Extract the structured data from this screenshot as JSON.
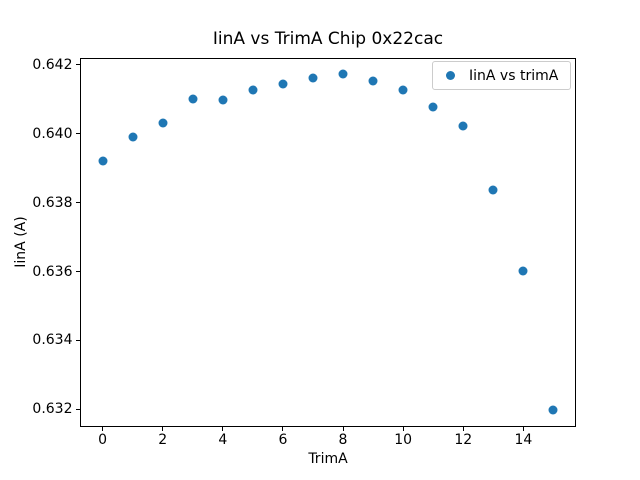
{
  "figure": {
    "background": "#ffffff",
    "spine_color": "#000000",
    "legend_border_color": "#cccccc"
  },
  "chart_data": {
    "type": "scatter",
    "title": "IinA vs TrimA Chip 0x22cac",
    "xlabel": "TrimA",
    "ylabel": "IinA (A)",
    "legend": [
      "IinA vs trimA"
    ],
    "legend_position": "upper right",
    "marker_color": "#1f77b4",
    "grid": false,
    "x": [
      0,
      1,
      2,
      3,
      4,
      5,
      6,
      7,
      8,
      9,
      10,
      11,
      12,
      13,
      14,
      15
    ],
    "y": [
      0.63921,
      0.6399,
      0.64032,
      0.64101,
      0.64098,
      0.64127,
      0.64144,
      0.64161,
      0.64173,
      0.64154,
      0.64127,
      0.64077,
      0.64023,
      0.63838,
      0.63603,
      0.63197
    ],
    "xlim": [
      -0.75,
      15.75
    ],
    "ylim": [
      0.631486,
      0.642203
    ],
    "xtick_values": [
      0,
      2,
      4,
      6,
      8,
      10,
      12,
      14
    ],
    "xtick_labels": [
      "0",
      "2",
      "4",
      "6",
      "8",
      "10",
      "12",
      "14"
    ],
    "ytick_values": [
      0.632,
      0.634,
      0.636,
      0.638,
      0.64,
      0.642
    ],
    "ytick_labels": [
      "0.632",
      "0.634",
      "0.636",
      "0.638",
      "0.640",
      "0.642"
    ]
  }
}
